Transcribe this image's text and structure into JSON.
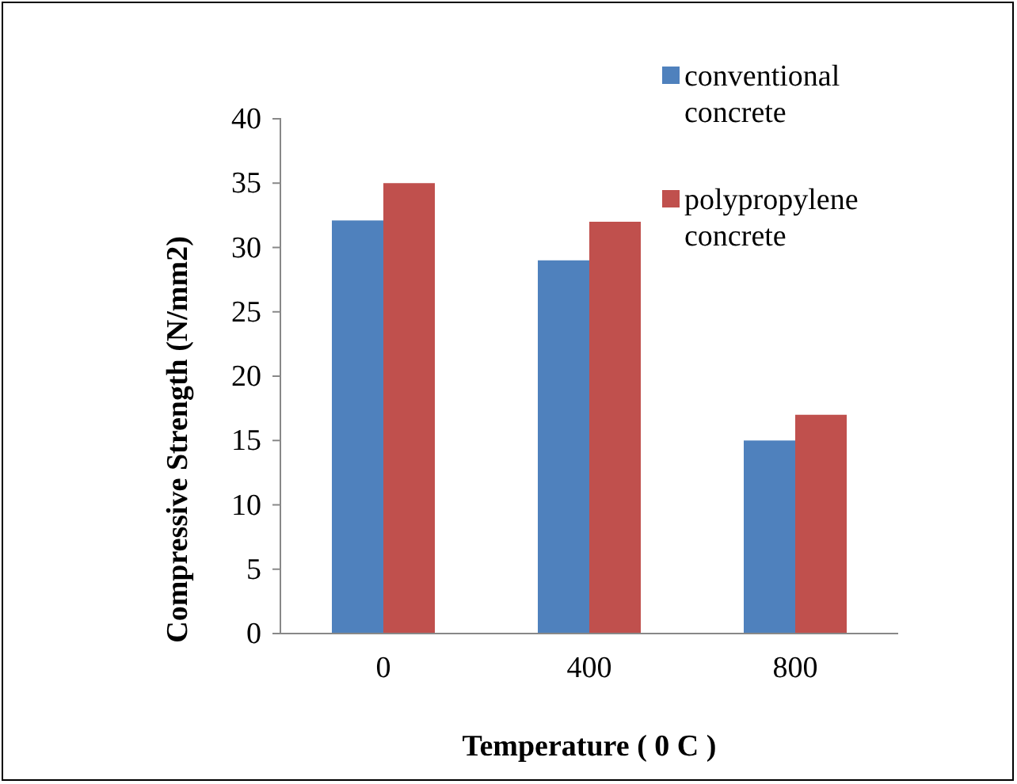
{
  "chart_data": {
    "type": "bar",
    "xlabel": "Temperature ( 0 C )",
    "ylabel": "Compressive Strength (N/mm2)",
    "categories": [
      "0",
      "400",
      "800"
    ],
    "series": [
      {
        "name": "conventional concrete",
        "color": "#4f81bd",
        "values": [
          32.1,
          29,
          15
        ]
      },
      {
        "name": "polypropylene concrete",
        "color": "#c0504d",
        "values": [
          35,
          32,
          17
        ]
      }
    ],
    "ylim": [
      0,
      40
    ],
    "yticks": [
      0,
      5,
      10,
      15,
      20,
      25,
      30,
      35,
      40
    ],
    "grid": false,
    "legend": "top right"
  }
}
